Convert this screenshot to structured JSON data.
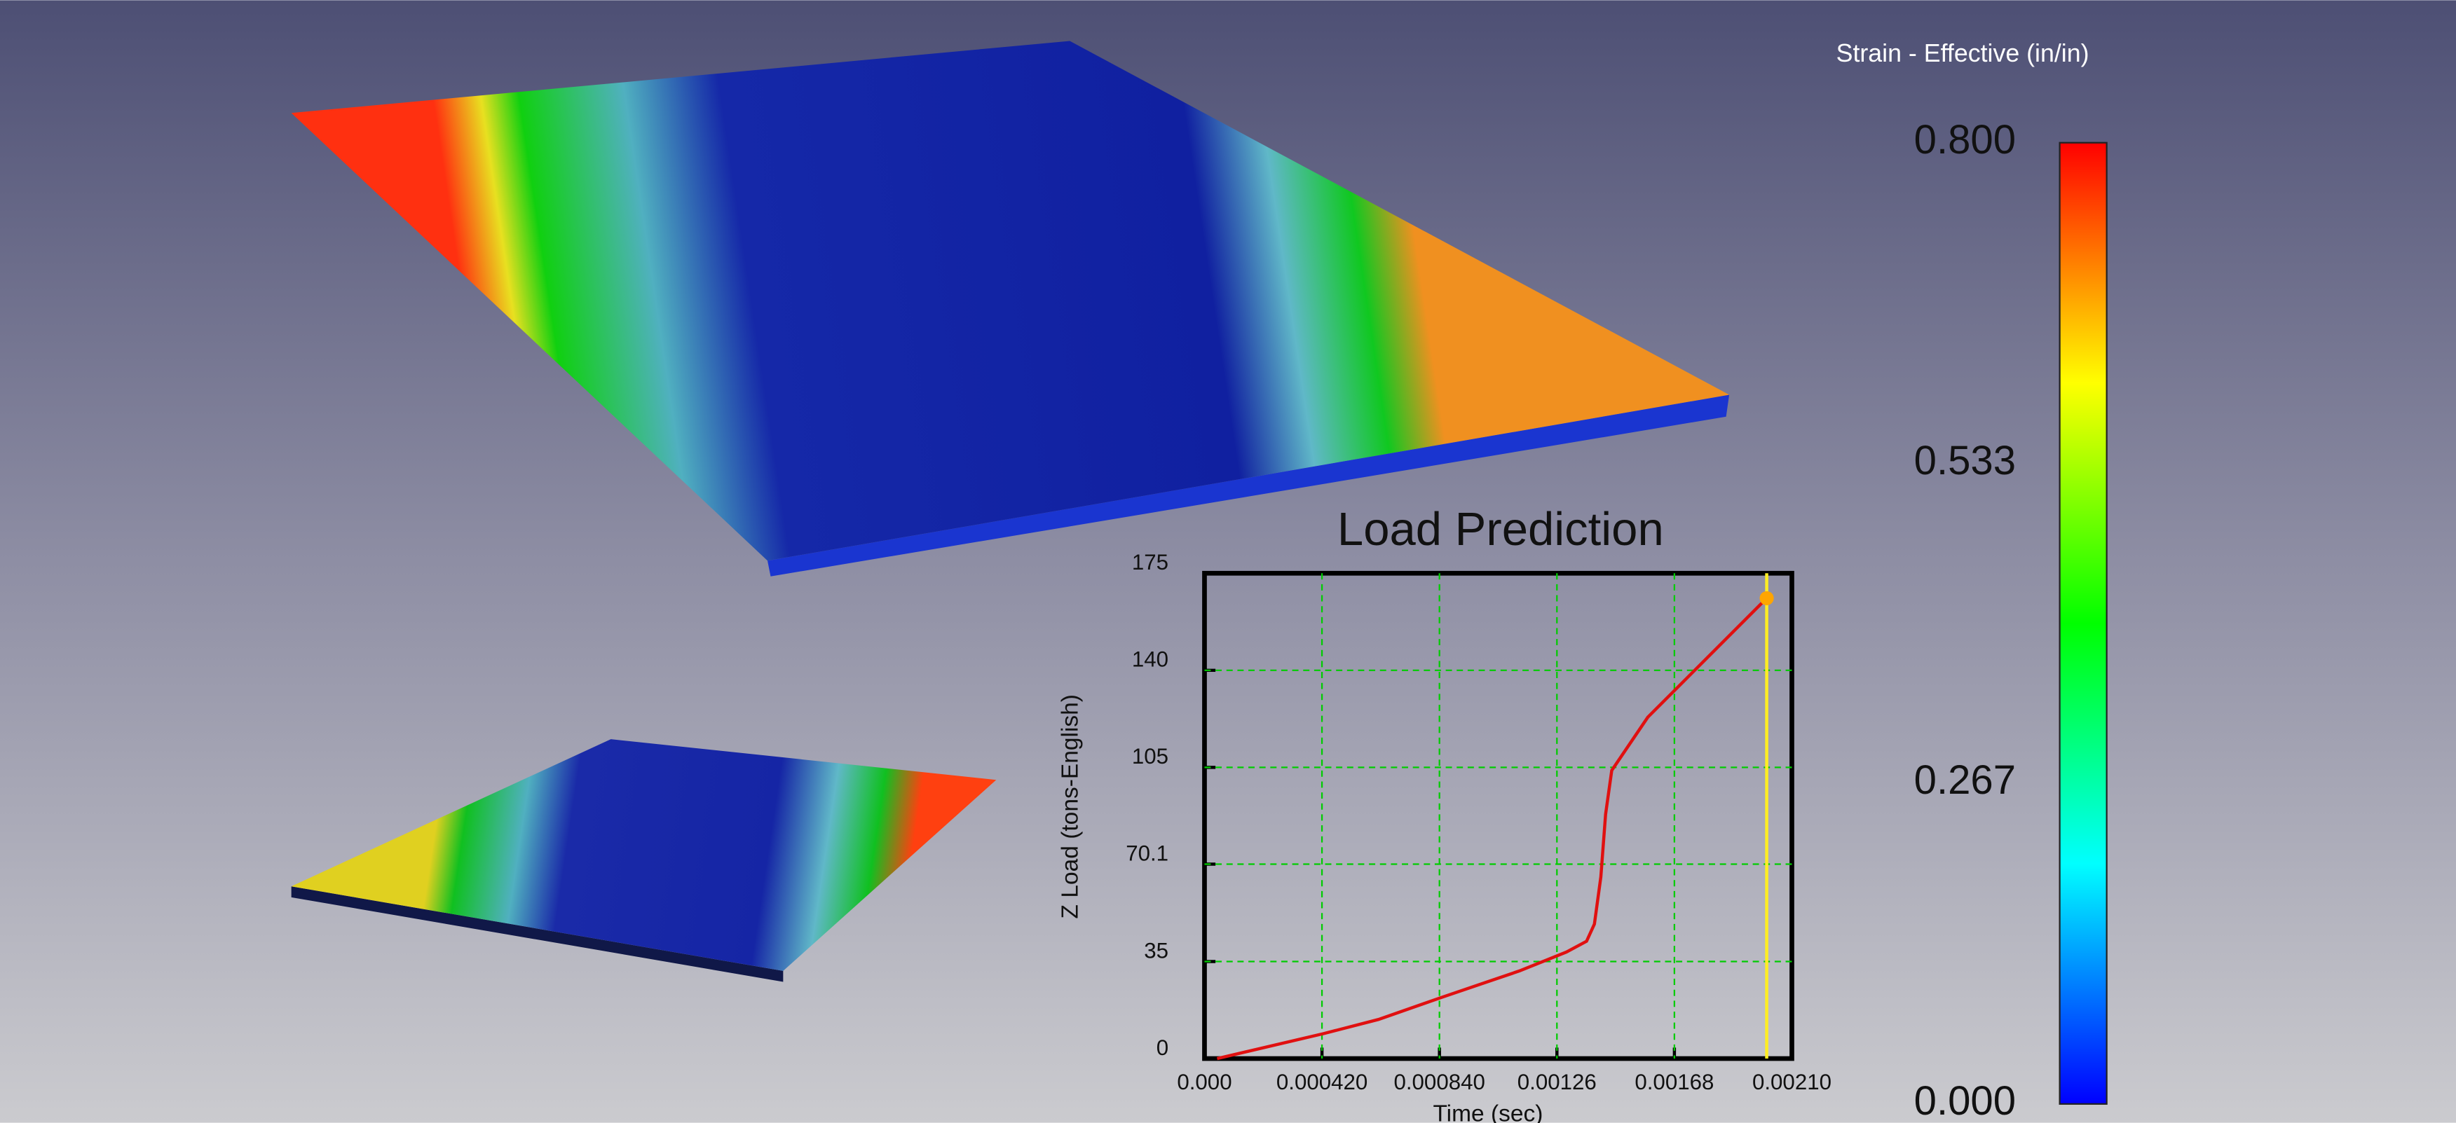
{
  "colorbar": {
    "title": "Strain - Effective (in/in)",
    "lim": [
      0,
      0.8
    ],
    "ticks": [
      {
        "value": 0.8,
        "label": "0.800"
      },
      {
        "value": 0.533,
        "label": "0.533"
      },
      {
        "value": 0.267,
        "label": "0.267"
      },
      {
        "value": 0,
        "label": "0.000"
      }
    ],
    "colors": [
      "#0000ff",
      "#00ffff",
      "#00ff00",
      "#ffff00",
      "#ff0000"
    ]
  },
  "chart_data": {
    "type": "line",
    "title": "Load Prediction",
    "x_label": "Time (sec)",
    "y_label": "Z Load (tons-English)",
    "x": [
      4.5e-05,
      0.000426,
      0.000622,
      0.000846,
      0.001126,
      0.001294,
      0.001366,
      0.001394,
      0.001417,
      0.001434,
      0.001456,
      0.001585,
      0.00201
    ],
    "values": [
      0,
      9.0,
      14.1,
      22.0,
      31.6,
      38.4,
      42.3,
      48.5,
      65.5,
      88.1,
      103.9,
      123.1,
      166.0
    ],
    "color": "#e01010",
    "marker_color": "#ffa500",
    "cursor_color": "#ffee22",
    "grid_color": "#00cc00",
    "xlim": [
      0,
      0.0021
    ],
    "xticks": [
      {
        "value": 0,
        "label": "0.000"
      },
      {
        "value": 0.00042,
        "label": "0.000420"
      },
      {
        "value": 0.00084,
        "label": "0.000840"
      },
      {
        "value": 0.00126,
        "label": "0.00126"
      },
      {
        "value": 0.00168,
        "label": "0.00168"
      },
      {
        "value": 0.0021,
        "label": "0.00210"
      }
    ],
    "ylim": [
      0,
      175
    ],
    "yticks": [
      0,
      35,
      70.1,
      105,
      140,
      175
    ],
    "grid": true
  }
}
